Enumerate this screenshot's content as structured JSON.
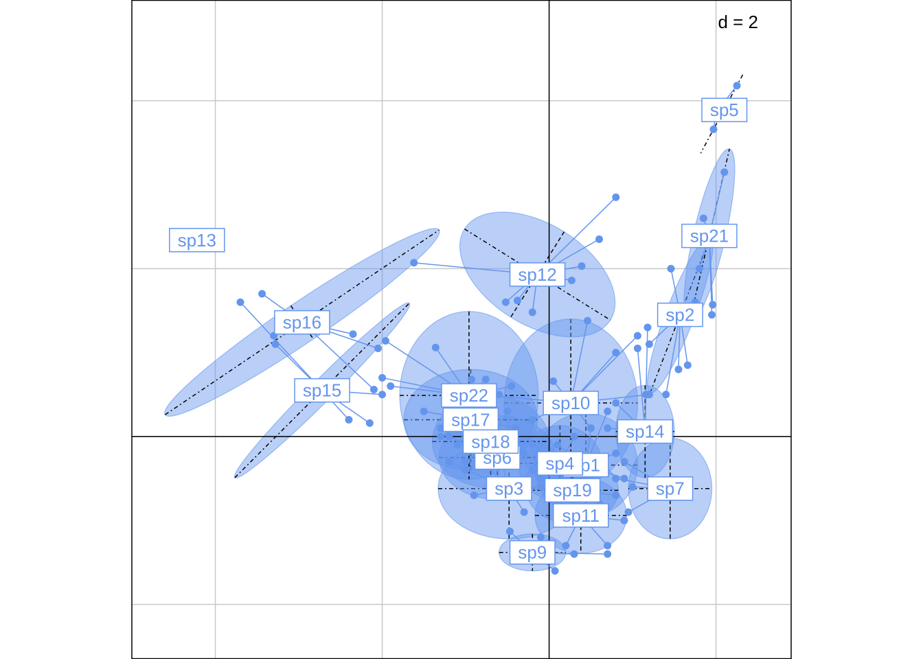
{
  "chart_data": {
    "type": "scatter",
    "title": "",
    "xlabel": "",
    "ylabel": "",
    "xlim": [
      -5,
      2.9
    ],
    "ylim": [
      -2.65,
      5.2
    ],
    "grid": true,
    "scale_label": "d = 2",
    "colors": {
      "points": "#6495ED",
      "ellipse_fill": "#6495ED",
      "label_border": "#6495ED",
      "label_text": "#6495ED",
      "grid": "#c8c8c8",
      "axes": "#000000"
    },
    "species": [
      {
        "label": "sp1",
        "center": [
          0.44,
          -0.34
        ],
        "label_pos": [
          0.44,
          -0.34
        ],
        "ellipse": {
          "rx": 0.62,
          "ry": 0.62,
          "angle": 0
        },
        "points": [
          [
            0.1,
            -0.1
          ],
          [
            0.5,
            0.1
          ],
          [
            0.8,
            -0.2
          ],
          [
            0.9,
            -0.5
          ],
          [
            0.6,
            -0.8
          ],
          [
            0.2,
            -0.7
          ],
          [
            0.0,
            -0.4
          ],
          [
            0.7,
            0.3
          ]
        ]
      },
      {
        "label": "sp2",
        "center": [
          1.57,
          1.45
        ],
        "label_pos": [
          1.57,
          1.45
        ],
        "ellipse": {
          "rx": 1.0,
          "ry": 0.17,
          "angle": 69
        },
        "points": [
          [
            1.75,
            1.6
          ],
          [
            1.55,
            0.8
          ],
          [
            1.46,
            2.0
          ],
          [
            1.2,
            1.1
          ],
          [
            1.4,
            0.5
          ],
          [
            1.66,
            0.85
          ]
        ]
      },
      {
        "label": "sp3",
        "center": [
          -0.48,
          -0.62
        ],
        "label_pos": [
          -0.48,
          -0.62
        ],
        "ellipse": {
          "rx": 0.85,
          "ry": 0.6,
          "angle": 0
        },
        "points": [
          [
            -1.2,
            -0.3
          ],
          [
            -0.9,
            -0.7
          ],
          [
            -0.3,
            -0.9
          ],
          [
            0.1,
            -0.6
          ],
          [
            -0.6,
            -0.2
          ],
          [
            -1.0,
            -0.1
          ],
          [
            -0.2,
            -0.4
          ]
        ]
      },
      {
        "label": "sp4",
        "center": [
          0.13,
          -0.32
        ],
        "label_pos": [
          0.13,
          -0.32
        ],
        "ellipse": {
          "rx": 0.5,
          "ry": 0.45,
          "angle": 0
        },
        "points": [
          [
            -0.2,
            -0.1
          ],
          [
            0.3,
            0.0
          ],
          [
            0.5,
            -0.4
          ],
          [
            0.2,
            -0.7
          ],
          [
            -0.1,
            -0.6
          ]
        ]
      },
      {
        "label": "sp5",
        "center": [
          2.0,
          3.86
        ],
        "label_pos": [
          2.1,
          3.89
        ],
        "ellipse": null,
        "points": [
          [
            2.25,
            4.18
          ],
          [
            1.97,
            3.66
          ]
        ]
      },
      {
        "label": "sp6",
        "center": [
          -0.62,
          -0.25
        ],
        "label_pos": [
          -0.62,
          -0.25
        ],
        "ellipse": {
          "rx": 0.7,
          "ry": 0.5,
          "angle": 0
        },
        "points": [
          [
            -1.2,
            0.0
          ],
          [
            -0.8,
            -0.3
          ],
          [
            -0.3,
            -0.2
          ],
          [
            -0.6,
            -0.6
          ],
          [
            -1.0,
            -0.4
          ]
        ]
      },
      {
        "label": "sp7",
        "center": [
          1.45,
          -0.62
        ],
        "label_pos": [
          1.45,
          -0.62
        ],
        "ellipse": {
          "rx": 0.5,
          "ry": 0.6,
          "angle": 0
        },
        "points": [
          [
            0.9,
            -0.3
          ],
          [
            1.0,
            -0.6
          ],
          [
            0.95,
            -0.9
          ],
          [
            0.8,
            -0.5
          ]
        ]
      },
      {
        "label": "sp9",
        "center": [
          -0.2,
          -1.38
        ],
        "label_pos": [
          -0.2,
          -1.38
        ],
        "ellipse": {
          "rx": 0.4,
          "ry": 0.22,
          "angle": 0
        },
        "points": [
          [
            -0.47,
            -1.13
          ],
          [
            0.07,
            -1.6
          ],
          [
            -0.1,
            -1.2
          ],
          [
            0.3,
            -1.4
          ],
          [
            0.7,
            -1.4
          ]
        ]
      },
      {
        "label": "sp10",
        "center": [
          0.26,
          0.4
        ],
        "label_pos": [
          0.26,
          0.4
        ],
        "ellipse": {
          "rx": 0.8,
          "ry": 1.0,
          "angle": 0
        },
        "points": [
          [
            0.46,
            1.38
          ],
          [
            0.8,
            1.0
          ],
          [
            0.05,
            0.66
          ],
          [
            -0.8,
            0.5
          ],
          [
            1.06,
            1.2
          ],
          [
            1.2,
            0.5
          ],
          [
            0.5,
            0.1
          ],
          [
            -0.2,
            0.2
          ]
        ]
      },
      {
        "label": "sp11",
        "center": [
          0.38,
          -0.94
        ],
        "label_pos": [
          0.38,
          -0.94
        ],
        "ellipse": {
          "rx": 0.55,
          "ry": 0.45,
          "angle": 0
        },
        "points": [
          [
            0.0,
            -0.7
          ],
          [
            0.5,
            -0.6
          ],
          [
            0.9,
            -1.0
          ],
          [
            0.7,
            -1.3
          ],
          [
            0.2,
            -1.3
          ]
        ]
      },
      {
        "label": "sp12",
        "center": [
          -0.14,
          1.93
        ],
        "label_pos": [
          -0.14,
          1.93
        ],
        "ellipse": {
          "rx": 1.03,
          "ry": 0.6,
          "angle": -32
        },
        "points": [
          [
            0.8,
            2.85
          ],
          [
            0.6,
            2.35
          ],
          [
            -1.62,
            2.07
          ],
          [
            0.39,
            2.03
          ],
          [
            -0.52,
            1.6
          ],
          [
            -0.38,
            1.62
          ],
          [
            -0.2,
            1.48
          ],
          [
            0.27,
            1.86
          ]
        ]
      },
      {
        "label": "sp13",
        "center": [
          -4.22,
          2.34
        ],
        "label_pos": [
          -4.22,
          2.34
        ],
        "ellipse": null,
        "points": []
      },
      {
        "label": "sp14",
        "center": [
          1.15,
          0.06
        ],
        "label_pos": [
          1.15,
          0.06
        ],
        "ellipse": {
          "rx": 0.35,
          "ry": 0.55,
          "angle": 0
        },
        "points": [
          [
            1.06,
            1.05
          ],
          [
            1.18,
            1.3
          ],
          [
            1.16,
            0.5
          ],
          [
            0.8,
            0.4
          ],
          [
            0.7,
            0.1
          ]
        ]
      },
      {
        "label": "sp15",
        "center": [
          -2.72,
          0.55
        ],
        "label_pos": [
          -2.72,
          0.55
        ],
        "ellipse": {
          "rx": 1.48,
          "ry": 0.13,
          "angle": 45
        },
        "points": [
          [
            -3.28,
            1.1
          ],
          [
            -2.4,
            0.2
          ],
          [
            -2.15,
            0.16
          ],
          [
            -3.7,
            1.6
          ],
          [
            -2.0,
            0.5
          ]
        ]
      },
      {
        "label": "sp16",
        "center": [
          -2.96,
          1.36
        ],
        "label_pos": [
          -2.96,
          1.36
        ],
        "ellipse": {
          "rx": 1.98,
          "ry": 0.24,
          "angle": 34
        },
        "points": [
          [
            -3.44,
            1.7
          ],
          [
            -2.35,
            1.22
          ],
          [
            -2.1,
            0.56
          ],
          [
            -2.05,
            1.05
          ],
          [
            -3.3,
            1.2
          ]
        ]
      },
      {
        "label": "sp17",
        "center": [
          -0.94,
          0.2
        ],
        "label_pos": [
          -0.94,
          0.2
        ],
        "ellipse": {
          "rx": 0.8,
          "ry": 0.6,
          "angle": 0
        },
        "points": [
          [
            -1.5,
            0.3
          ],
          [
            -1.3,
            0.0
          ],
          [
            -0.6,
            0.5
          ],
          [
            -0.4,
            0.1
          ],
          [
            -1.1,
            -0.1
          ]
        ]
      },
      {
        "label": "sp18",
        "center": [
          -0.7,
          -0.06
        ],
        "label_pos": [
          -0.7,
          -0.06
        ],
        "ellipse": {
          "rx": 0.7,
          "ry": 0.55,
          "angle": 0
        },
        "points": [
          [
            -1.3,
            0.1
          ],
          [
            -1.0,
            -0.3
          ],
          [
            -0.4,
            -0.2
          ],
          [
            -0.5,
            0.3
          ]
        ]
      },
      {
        "label": "sp19",
        "center": [
          0.28,
          -0.64
        ],
        "label_pos": [
          0.28,
          -0.64
        ],
        "ellipse": {
          "rx": 0.55,
          "ry": 0.4,
          "angle": 0
        },
        "points": [
          [
            -0.1,
            -0.5
          ],
          [
            0.5,
            -0.4
          ],
          [
            0.8,
            -0.7
          ],
          [
            0.3,
            -0.9
          ]
        ]
      },
      {
        "label": "sp21",
        "center": [
          1.92,
          2.39
        ],
        "label_pos": [
          1.92,
          2.39
        ],
        "ellipse": {
          "rx": 1.07,
          "ry": 0.19,
          "angle": 77
        },
        "points": [
          [
            2.1,
            3.15
          ],
          [
            1.96,
            1.57
          ],
          [
            1.95,
            1.45
          ],
          [
            1.85,
            2.6
          ],
          [
            1.8,
            2.0
          ]
        ]
      },
      {
        "label": "sp22",
        "center": [
          -0.96,
          0.49
        ],
        "label_pos": [
          -0.96,
          0.49
        ],
        "ellipse": {
          "rx": 0.83,
          "ry": 1.0,
          "angle": 0
        },
        "points": [
          [
            -1.36,
            1.06
          ],
          [
            -1.96,
            1.14
          ],
          [
            -2.0,
            0.7
          ],
          [
            -1.9,
            0.6
          ],
          [
            -0.93,
            0.68
          ],
          [
            -0.76,
            0.68
          ],
          [
            -0.45,
            0.6
          ],
          [
            -1.0,
            0.3
          ]
        ]
      }
    ]
  }
}
